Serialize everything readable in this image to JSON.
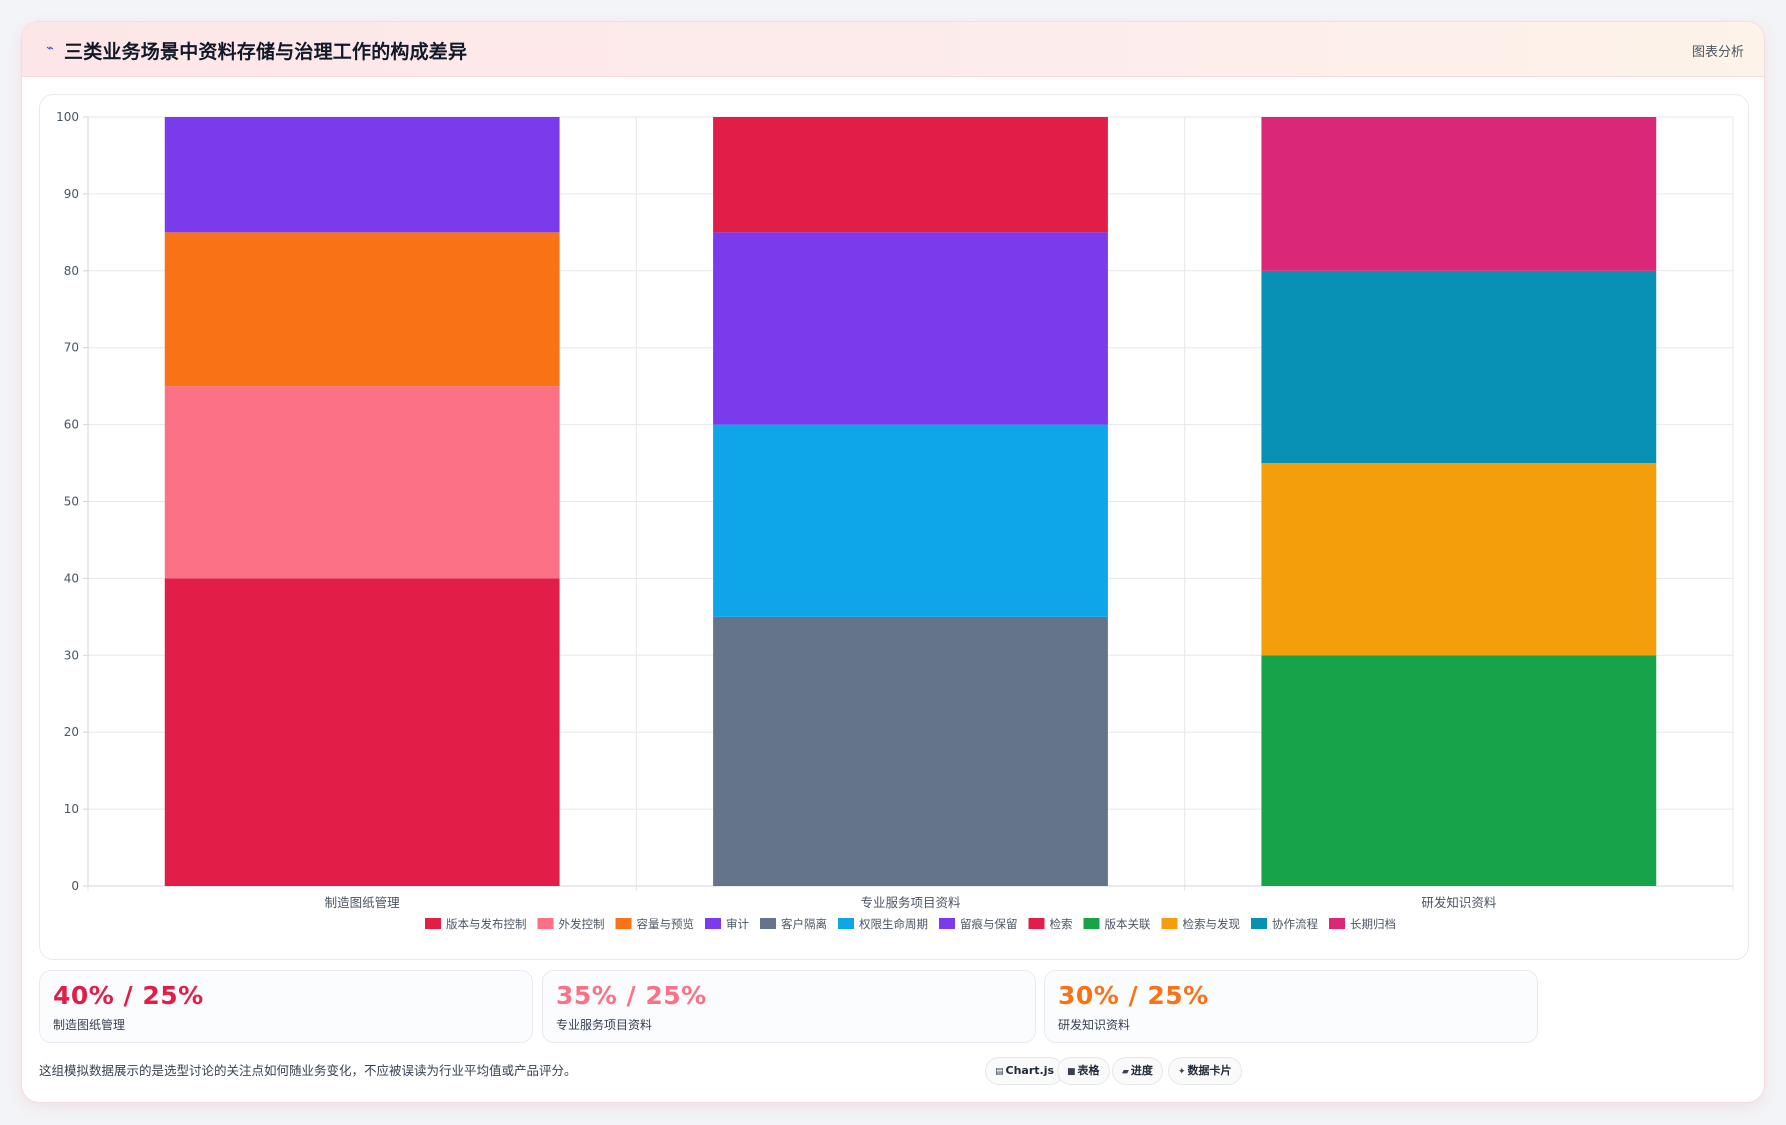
{
  "header": {
    "icon": "wave-icon",
    "title": "三类业务场景中资料存储与治理工作的构成差异",
    "action_label": "图表分析"
  },
  "chart_data": {
    "type": "bar",
    "stacked": true,
    "categories": [
      "制造图纸管理",
      "专业服务项目资料",
      "研发知识资料"
    ],
    "ylim": [
      0,
      100
    ],
    "yticks": [
      0,
      10,
      20,
      30,
      40,
      50,
      60,
      70,
      80,
      90,
      100
    ],
    "grid": true,
    "legend_position": "bottom",
    "series": [
      {
        "name": "版本与发布控制",
        "color": "#e11d48",
        "values": [
          40,
          null,
          null
        ]
      },
      {
        "name": "外发控制",
        "color": "#fb7185",
        "values": [
          25,
          null,
          null
        ]
      },
      {
        "name": "容量与预览",
        "color": "#f97316",
        "values": [
          20,
          null,
          null
        ]
      },
      {
        "name": "审计",
        "color": "#7c3aed",
        "values": [
          15,
          null,
          null
        ]
      },
      {
        "name": "客户隔离",
        "color": "#64748b",
        "values": [
          null,
          35,
          null
        ]
      },
      {
        "name": "权限生命周期",
        "color": "#0ea5e9",
        "values": [
          null,
          25,
          null
        ]
      },
      {
        "name": "留痕与保留",
        "color": "#7c3aed",
        "values": [
          null,
          25,
          null
        ]
      },
      {
        "name": "检索",
        "color": "#e11d48",
        "values": [
          null,
          15,
          null
        ]
      },
      {
        "name": "版本关联",
        "color": "#16a34a",
        "values": [
          null,
          null,
          30
        ]
      },
      {
        "name": "检索与发现",
        "color": "#f59e0b",
        "values": [
          null,
          null,
          25
        ]
      },
      {
        "name": "协作流程",
        "color": "#0891b2",
        "values": [
          null,
          null,
          25
        ]
      },
      {
        "name": "长期归档",
        "color": "#db2777",
        "values": [
          null,
          null,
          20
        ]
      }
    ]
  },
  "stats": [
    {
      "value": "40% / 25%",
      "label": "制造图纸管理",
      "color": "#e11d48"
    },
    {
      "value": "35% / 25%",
      "label": "专业服务项目资料",
      "color": "#fb7185"
    },
    {
      "value": "30% / 25%",
      "label": "研发知识资料",
      "color": "#f97316"
    }
  ],
  "footnote": "这组模拟数据展示的是选型讨论的关注点如何随业务变化，不应被误读为行业平均值或产品评分。",
  "chips": [
    {
      "icon": "chart-icon",
      "glyph": "▤",
      "label": "Chart.js"
    },
    {
      "icon": "table-icon",
      "glyph": "■",
      "label": "表格"
    },
    {
      "icon": "progress-icon",
      "glyph": "▰",
      "label": "进度"
    },
    {
      "icon": "card-icon",
      "glyph": "✦",
      "label": "数据卡片"
    }
  ]
}
